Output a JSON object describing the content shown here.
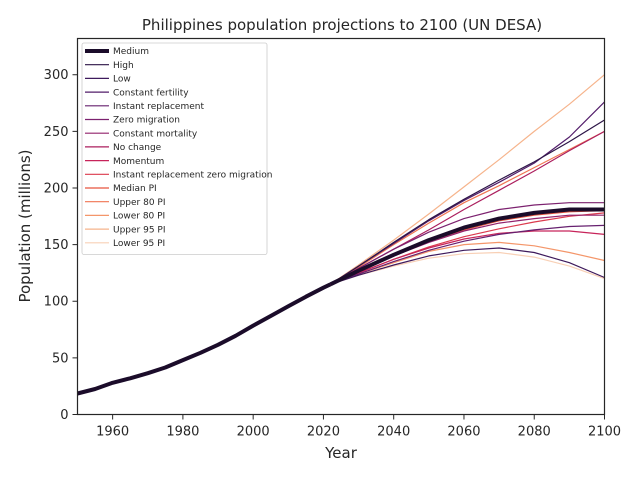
{
  "chart_data": {
    "type": "line",
    "title": "Philippines population projections to 2100 (UN DESA)",
    "xlabel": "Year",
    "ylabel": "Population (millions)",
    "xlim": [
      1950,
      2100
    ],
    "ylim": [
      0,
      332
    ],
    "xticks": [
      1960,
      1980,
      2000,
      2020,
      2040,
      2060,
      2080,
      2100
    ],
    "yticks": [
      0,
      50,
      100,
      150,
      200,
      250,
      300
    ],
    "legend_position": "upper-left",
    "grid": false,
    "historical": {
      "x": [
        1950,
        1955,
        1960,
        1965,
        1970,
        1975,
        1980,
        1985,
        1990,
        1995,
        2000,
        2005,
        2010,
        2015,
        2020,
        2022
      ],
      "y": [
        18.5,
        22.5,
        28,
        32,
        36.5,
        41.5,
        48,
        54.5,
        61.5,
        69.5,
        78.5,
        87,
        95.5,
        104,
        112,
        115
      ]
    },
    "series": [
      {
        "name": "Medium",
        "color": "#1b0c2a",
        "width": 4,
        "x": [
          2022,
          2030,
          2040,
          2050,
          2060,
          2070,
          2080,
          2090,
          2100
        ],
        "y": [
          115,
          127,
          141,
          154,
          165,
          173,
          178,
          181,
          181
        ]
      },
      {
        "name": "High",
        "color": "#2d1547",
        "width": 1.2,
        "x": [
          2022,
          2030,
          2040,
          2050,
          2060,
          2070,
          2080,
          2090,
          2100
        ],
        "y": [
          115,
          131,
          152,
          172,
          190,
          207,
          223,
          241,
          260
        ]
      },
      {
        "name": "Low",
        "color": "#3e1a5c",
        "width": 1.2,
        "x": [
          2022,
          2030,
          2040,
          2050,
          2060,
          2070,
          2080,
          2090,
          2100
        ],
        "y": [
          115,
          123,
          132,
          140,
          145,
          147,
          143,
          134,
          121
        ]
      },
      {
        "name": "Constant fertility",
        "color": "#521d6a",
        "width": 1.2,
        "x": [
          2022,
          2030,
          2040,
          2050,
          2060,
          2070,
          2080,
          2090,
          2100
        ],
        "y": [
          115,
          131,
          151,
          171,
          189,
          205,
          222,
          245,
          276
        ]
      },
      {
        "name": "Instant replacement",
        "color": "#66206f",
        "width": 1.2,
        "x": [
          2022,
          2030,
          2040,
          2050,
          2060,
          2070,
          2080,
          2090,
          2100
        ],
        "y": [
          115,
          124,
          135,
          145,
          153,
          159,
          163,
          166,
          167
        ]
      },
      {
        "name": "Zero migration",
        "color": "#7c216f",
        "width": 1.2,
        "x": [
          2022,
          2030,
          2040,
          2050,
          2060,
          2070,
          2080,
          2090,
          2100
        ],
        "y": [
          115,
          129,
          146,
          161,
          173,
          181,
          185,
          187,
          187
        ]
      },
      {
        "name": "Constant mortality",
        "color": "#92226c",
        "width": 1.2,
        "x": [
          2022,
          2030,
          2040,
          2050,
          2060,
          2070,
          2080,
          2090,
          2100
        ],
        "y": [
          115,
          126,
          140,
          152,
          162,
          169,
          173,
          176,
          176
        ]
      },
      {
        "name": "No change",
        "color": "#ac1f5e",
        "width": 1.2,
        "x": [
          2022,
          2030,
          2040,
          2050,
          2060,
          2070,
          2080,
          2090,
          2100
        ],
        "y": [
          115,
          129,
          146,
          163,
          181,
          198,
          215,
          233,
          250
        ]
      },
      {
        "name": "Momentum",
        "color": "#c7245a",
        "width": 1.2,
        "x": [
          2022,
          2030,
          2040,
          2050,
          2060,
          2070,
          2080,
          2090,
          2100
        ],
        "y": [
          115,
          125,
          137,
          147,
          155,
          160,
          162,
          162,
          159
        ]
      },
      {
        "name": "Instant replacement zero migration",
        "color": "#db3a4d",
        "width": 1.2,
        "x": [
          2022,
          2030,
          2040,
          2050,
          2060,
          2070,
          2080,
          2090,
          2100
        ],
        "y": [
          115,
          125,
          137,
          148,
          157,
          164,
          170,
          175,
          178
        ]
      },
      {
        "name": "Median PI",
        "color": "#e8553f",
        "width": 1.2,
        "x": [
          2022,
          2030,
          2040,
          2050,
          2060,
          2070,
          2080,
          2090,
          2100
        ],
        "y": [
          115,
          127,
          140,
          153,
          163,
          171,
          176,
          179,
          180
        ]
      },
      {
        "name": "Upper 80 PI",
        "color": "#f07552",
        "width": 1.2,
        "x": [
          2022,
          2030,
          2040,
          2050,
          2060,
          2070,
          2080,
          2090,
          2100
        ],
        "y": [
          115,
          130,
          150,
          169,
          187,
          202,
          218,
          234,
          250
        ]
      },
      {
        "name": "Lower 80 PI",
        "color": "#f4966a",
        "width": 1.2,
        "x": [
          2022,
          2030,
          2040,
          2050,
          2060,
          2070,
          2080,
          2090,
          2100
        ],
        "y": [
          115,
          124,
          134,
          144,
          150,
          152,
          149,
          143,
          136
        ]
      },
      {
        "name": "Upper 95 PI",
        "color": "#f6b48c",
        "width": 1.2,
        "x": [
          2022,
          2030,
          2040,
          2050,
          2060,
          2070,
          2080,
          2090,
          2100
        ],
        "y": [
          115,
          132,
          154,
          177,
          201,
          225,
          250,
          274,
          300
        ]
      },
      {
        "name": "Lower 95 PI",
        "color": "#f8d0b6",
        "width": 1.2,
        "x": [
          2022,
          2030,
          2040,
          2050,
          2060,
          2070,
          2080,
          2090,
          2100
        ],
        "y": [
          115,
          123,
          131,
          138,
          142,
          143,
          139,
          131,
          120
        ]
      }
    ]
  }
}
